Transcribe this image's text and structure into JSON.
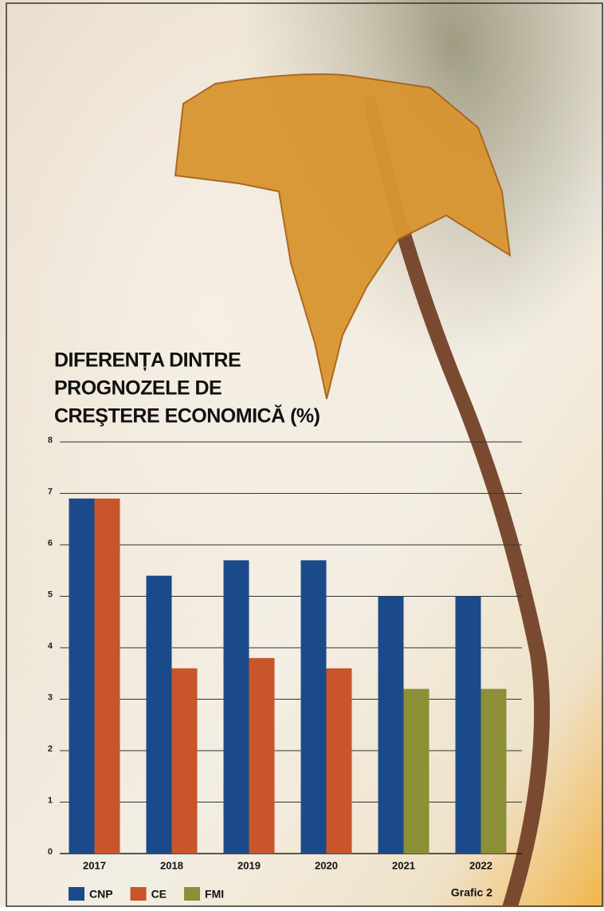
{
  "chart_data": {
    "type": "bar",
    "title": [
      "DIFERENȚA DINTRE",
      "PROGNOZELE DE",
      "CREŞTERE ECONOMICĂ (%)"
    ],
    "categories": [
      "2017",
      "2018",
      "2019",
      "2020",
      "2021",
      "2022"
    ],
    "series": [
      {
        "name": "CNP",
        "color": "#1b4a8a",
        "values": [
          6.9,
          5.4,
          5.7,
          5.7,
          5.0,
          5.0
        ]
      },
      {
        "name": "CE",
        "color": "#c8552b",
        "values": [
          6.9,
          3.6,
          3.8,
          3.6,
          null,
          null
        ]
      },
      {
        "name": "FMI",
        "color": "#8b8f36",
        "values": [
          null,
          null,
          null,
          null,
          3.2,
          3.2
        ]
      }
    ],
    "ylim": [
      0,
      8
    ],
    "yticks": [
      0,
      1,
      2,
      3,
      4,
      5,
      6,
      7,
      8
    ],
    "grid": true,
    "legend": "bottom-left",
    "caption": "Grafic 2"
  }
}
